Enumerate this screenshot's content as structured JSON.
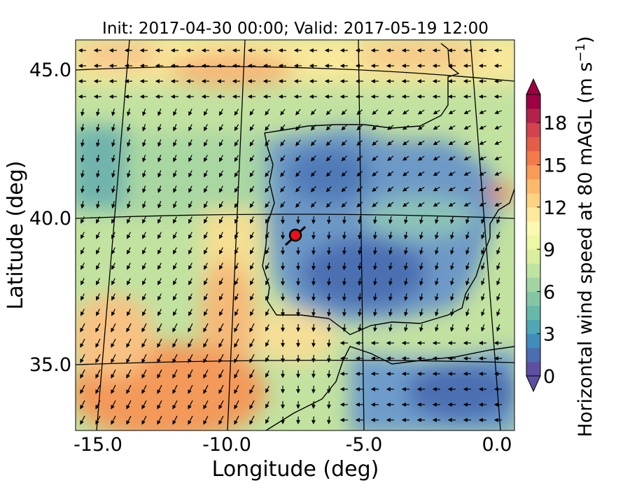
{
  "title": "Init: 2017-04-30 00:00; Valid: 2017-05-19 12:00",
  "xaxis": {
    "label": "Longitude (deg)",
    "ticks": [
      "-15.0",
      "-10.0",
      "-5.0",
      "0.0"
    ]
  },
  "yaxis": {
    "label": "Latitude (deg)",
    "ticks": [
      "45.0",
      "40.0",
      "35.0"
    ]
  },
  "colorbar": {
    "label_main": "Horizontal wind speed at 80 mAGL (m s",
    "label_sup": "−1",
    "label_end": ")",
    "ticks": [
      "0",
      "3",
      "6",
      "9",
      "12",
      "15",
      "18"
    ],
    "min": 0,
    "max": 20,
    "colors": [
      "#5e4fa2",
      "#4a6eb0",
      "#3f8dbc",
      "#4fa6b4",
      "#67b9a7",
      "#84c6a4",
      "#a2d4a3",
      "#bfe4a0",
      "#d9ef9c",
      "#edf7a4",
      "#fbf8b0",
      "#fee89a",
      "#fdd282",
      "#fdb96b",
      "#f99a57",
      "#f37b49",
      "#e55c47",
      "#d4424c",
      "#b4224b",
      "#9e0142"
    ],
    "extend": "both"
  },
  "map": {
    "domain": "Iberian Peninsula",
    "lon_range": [
      -15.8,
      0.2
    ],
    "lat_range": [
      32.5,
      46.2
    ],
    "marker": {
      "lon": -7.6,
      "lat": 39.3,
      "color": "#e8111a"
    }
  },
  "colors": {
    "sea_west": "#a9d7a2",
    "land": "#6f99c4",
    "high_wind": "#f3a060"
  }
}
